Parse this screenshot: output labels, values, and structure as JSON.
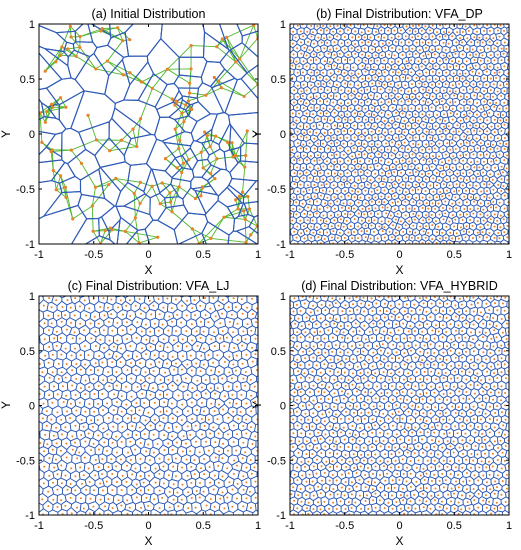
{
  "colors": {
    "voronoi_edge": "#2f5bb7",
    "delaunay_edge": "#4db82a",
    "point": "#e8832a",
    "frame": "#000000"
  },
  "panels": [
    {
      "id": "a",
      "title": "(a) Initial Distribution",
      "xlabel": "X",
      "ylabel": "Y",
      "xticks": [
        "-1",
        "-0.5",
        "0",
        "0.5",
        "1"
      ],
      "yticks": [
        "1",
        "0.5",
        "0",
        "-0.5",
        "-1"
      ],
      "xlim": [
        -1,
        1
      ],
      "ylim": [
        -1,
        1
      ],
      "point_count": 140,
      "distribution": "random",
      "shows_delaunay": true
    },
    {
      "id": "b",
      "title": "(b) Final Distribution: VFA_DP",
      "xlabel": "X",
      "ylabel": "Y",
      "xticks": [
        "-1",
        "-0.5",
        "0",
        "0.5",
        "1"
      ],
      "yticks": [
        "1",
        "0.5",
        "0",
        "-0.5",
        "-1"
      ],
      "xlim": [
        -1,
        1
      ],
      "ylim": [
        -1,
        1
      ],
      "point_count": 1200,
      "distribution": "uniform-hexagonal",
      "shows_delaunay": false
    },
    {
      "id": "c",
      "title": "(c) Final Distribution: VFA_LJ",
      "xlabel": "X",
      "ylabel": "Y",
      "xticks": [
        "-1",
        "-0.5",
        "0",
        "0.5",
        "1"
      ],
      "yticks": [
        "1",
        "0.5",
        "0",
        "-0.5",
        "-1"
      ],
      "xlim": [
        -1,
        1
      ],
      "ylim": [
        -1,
        1
      ],
      "point_count": 650,
      "distribution": "uniform-hexagonal",
      "shows_delaunay": false
    },
    {
      "id": "d",
      "title": "(d) Final Distribution: VFA_HYBRID",
      "xlabel": "X",
      "ylabel": "Y",
      "xticks": [
        "-1",
        "-0.5",
        "0",
        "0.5",
        "1"
      ],
      "yticks": [
        "1",
        "0.5",
        "0",
        "-0.5",
        "-1"
      ],
      "xlim": [
        -1,
        1
      ],
      "ylim": [
        -1,
        1
      ],
      "point_count": 900,
      "distribution": "uniform-hexagonal",
      "shows_delaunay": false
    }
  ]
}
